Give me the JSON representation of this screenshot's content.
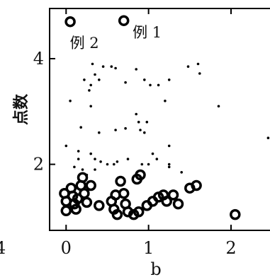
{
  "chart_data": {
    "type": "scatter",
    "title": "",
    "xlabel": "b",
    "ylabel": "点数",
    "xlim": [
      -0.2,
      2.55
    ],
    "ylim": [
      0.75,
      4.95
    ],
    "x_ticks": [
      0,
      1,
      2
    ],
    "y_ticks": [
      2,
      4
    ],
    "x_tick_labels": [
      "0",
      "1",
      "2"
    ],
    "y_tick_labels": [
      "2",
      "4"
    ],
    "left_edge_tick_label": "4",
    "grid": false,
    "annotations": [
      {
        "text": "例 2",
        "x": 0.08,
        "y": 4.68
      },
      {
        "text": "例 1",
        "x": 0.72,
        "y": 4.72
      }
    ],
    "series": [
      {
        "marker": "circle-open",
        "color": "#000000",
        "points": [
          [
            0.05,
            4.7
          ],
          [
            0.7,
            4.72
          ],
          [
            -0.02,
            1.45
          ],
          [
            0.0,
            1.3
          ],
          [
            0.0,
            1.12
          ],
          [
            0.06,
            1.55
          ],
          [
            0.08,
            1.4
          ],
          [
            0.1,
            1.25
          ],
          [
            0.12,
            1.15
          ],
          [
            0.14,
            1.35
          ],
          [
            0.18,
            1.6
          ],
          [
            0.2,
            1.75
          ],
          [
            0.22,
            1.45
          ],
          [
            0.25,
            1.28
          ],
          [
            0.3,
            1.6
          ],
          [
            0.4,
            1.22
          ],
          [
            0.55,
            1.3
          ],
          [
            0.58,
            1.15
          ],
          [
            0.6,
            1.42
          ],
          [
            0.62,
            1.05
          ],
          [
            0.66,
            1.68
          ],
          [
            0.7,
            1.45
          ],
          [
            0.72,
            1.25
          ],
          [
            0.75,
            1.1
          ],
          [
            0.82,
            1.05
          ],
          [
            0.86,
            1.72
          ],
          [
            0.88,
            1.1
          ],
          [
            0.9,
            1.8
          ],
          [
            0.98,
            1.22
          ],
          [
            1.05,
            1.3
          ],
          [
            1.12,
            1.38
          ],
          [
            1.18,
            1.42
          ],
          [
            1.22,
            1.3
          ],
          [
            1.3,
            1.42
          ],
          [
            1.36,
            1.25
          ],
          [
            1.5,
            1.55
          ],
          [
            1.58,
            1.6
          ],
          [
            2.05,
            1.05
          ]
        ]
      },
      {
        "marker": "dot",
        "color": "#000000",
        "points": [
          [
            0.32,
            3.9
          ],
          [
            0.35,
            3.7
          ],
          [
            0.45,
            3.85
          ],
          [
            0.55,
            3.85
          ],
          [
            0.6,
            3.82
          ],
          [
            0.4,
            3.6
          ],
          [
            0.22,
            3.6
          ],
          [
            0.3,
            3.5
          ],
          [
            0.28,
            3.4
          ],
          [
            0.72,
            3.55
          ],
          [
            0.85,
            3.8
          ],
          [
            0.95,
            3.6
          ],
          [
            1.02,
            3.5
          ],
          [
            1.12,
            3.5
          ],
          [
            1.25,
            3.6
          ],
          [
            1.48,
            3.85
          ],
          [
            1.6,
            3.9
          ],
          [
            1.62,
            3.72
          ],
          [
            0.05,
            3.2
          ],
          [
            0.3,
            3.1
          ],
          [
            0.85,
            2.95
          ],
          [
            0.88,
            2.8
          ],
          [
            0.9,
            2.65
          ],
          [
            0.98,
            2.8
          ],
          [
            0.95,
            2.6
          ],
          [
            0.72,
            2.68
          ],
          [
            0.6,
            2.65
          ],
          [
            0.4,
            2.6
          ],
          [
            0.18,
            2.7
          ],
          [
            0.0,
            2.35
          ],
          [
            0.15,
            2.25
          ],
          [
            0.15,
            2.1
          ],
          [
            0.3,
            2.2
          ],
          [
            0.35,
            2.1
          ],
          [
            0.42,
            2.05
          ],
          [
            1.25,
            2.35
          ],
          [
            1.05,
            2.2
          ],
          [
            1.1,
            2.1
          ],
          [
            1.25,
            2.0
          ],
          [
            1.25,
            1.95
          ],
          [
            1.4,
            1.85
          ],
          [
            1.85,
            3.1
          ],
          [
            2.45,
            2.5
          ],
          [
            0.62,
            2.05
          ],
          [
            0.58,
            2.0
          ],
          [
            0.75,
            2.1
          ],
          [
            0.1,
            1.95
          ],
          [
            0.2,
            1.9
          ],
          [
            0.25,
            1.8
          ],
          [
            0.35,
            1.9
          ],
          [
            0.5,
            2.0
          ],
          [
            1.0,
            2.0
          ],
          [
            1.2,
            3.2
          ],
          [
            0.92,
            2.0
          ]
        ]
      }
    ]
  }
}
